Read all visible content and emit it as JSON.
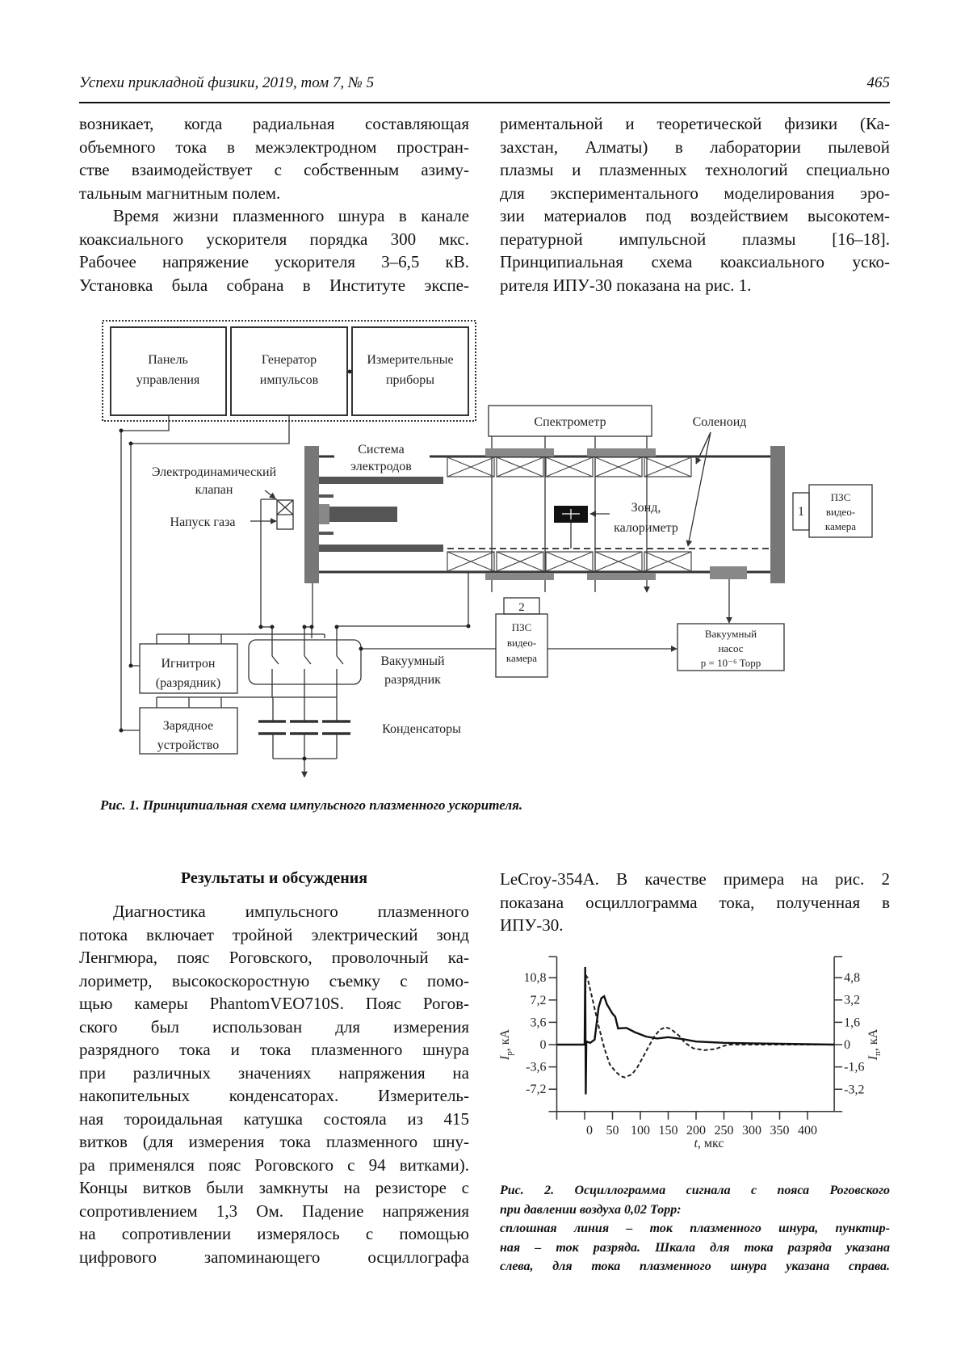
{
  "header": {
    "journal": "Успехи прикладной физики, 2019, том 7, № 5",
    "page_number": "465"
  },
  "intro": {
    "left": [
      [
        "возникает, когда радиальная составляющая",
        "объемного тока в межэлектродном простран-",
        "стве взаимодействует с собственным азиму-",
        "тальным магнитным полем."
      ],
      [
        "Время жизни плазменного шнура в канале",
        "коаксиального ускорителя порядка 300 мкс.",
        "Рабочее напряжение ускорителя 3–6,5 кВ.",
        "Установка была собрана в Институте экспе-"
      ]
    ],
    "right": [
      [
        "риментальной и теоретической физики (Ка-",
        "захстан, Алматы) в лаборатории пылевой",
        "плазмы и плазменных технологий специально",
        "для экспериментального моделирования эро-",
        "зии материалов под воздействием высокотем-",
        "пературной импульсной плазмы [16–18].",
        "Принципиальная схема коаксиального уско-",
        "рителя ИПУ-30 показана на рис. 1."
      ]
    ]
  },
  "figure1": {
    "labels": {
      "panel": [
        "Панель",
        "управления"
      ],
      "generator": [
        "Генератор",
        "импульсов"
      ],
      "instruments": [
        "Измерительные",
        "приборы"
      ],
      "spectrometer": "Спектрометр",
      "solenoid": "Соленоид",
      "electrodes": [
        "Система",
        "электродов"
      ],
      "valve": [
        "Электродинамический",
        "клапан"
      ],
      "gas_inlet": "Напуск газа",
      "probe": [
        "Зонд,",
        "калориметр"
      ],
      "camera1": {
        "number": "1",
        "lines": [
          "ПЗС",
          "видео-",
          "камера"
        ]
      },
      "camera2": {
        "number": "2",
        "lines": [
          "ПЗС",
          "видео-",
          "камера"
        ]
      },
      "pump": [
        "Вакуумный",
        "насос",
        "p = 10⁻⁶ Торр"
      ],
      "ignitron": [
        "Игнитрон",
        "(разрядник)"
      ],
      "vacuum_switch": [
        "Вакуумный",
        "разрядник"
      ],
      "charger": [
        "Зарядное",
        "устройство"
      ],
      "capacitors": "Конденсаторы"
    },
    "caption": "Рис. 1. Принципиальная схема импульсного плазменного ускорителя."
  },
  "results": {
    "heading": "Результаты и обсуждения",
    "left": [
      [
        "Диагностика импульсного плазменного",
        "потока включает тройной электрический зонд",
        "Ленгмюра, пояс Роговского, проволочный ка-",
        "лориметр, высокоскоростную съемку с помо-",
        "щью камеры PhantomVEO710S. Пояс Рогов-",
        "ского был использован для измерения",
        "разрядного тока и тока плазменного шнура",
        "при различных значениях напряжения на",
        "накопительных конденсаторах. Измеритель-",
        "ная тороидальная катушка состояла из 415",
        "витков (для измерения тока плазменного шну-",
        "ра применялся пояс Роговского с 94 витками).",
        "Концы витков были замкнуты на резисторе с",
        "сопротивлением 1,3 Ом. Падение напряжения",
        "на сопротивлении измерялось с помощью",
        "цифрового запоминающего осциллографа"
      ]
    ],
    "right": [
      [
        "LeCroy-354A. В качестве примера на рис. 2",
        "показана осциллограмма тока, полученная в",
        "ИПУ-30."
      ]
    ]
  },
  "figure2": {
    "caption": [
      "Рис. 2. Осциллограмма сигнала с пояса Роговского",
      "при давлении воздуха 0,02 Торр:",
      "сплошная линия – ток плазменного шнура, пунктир-",
      "ная – ток разряда. Шкала для тока разряда указана",
      "слева, для тока плазменного шнура указана справа."
    ]
  },
  "chart_data": {
    "type": "line",
    "title": "",
    "xlabel": {
      "symbol": "t",
      "unit": ", мкс"
    },
    "ylabel_left": {
      "symbol": "I",
      "subscript": "р",
      "unit": ", кА"
    },
    "ylabel_right": {
      "symbol": "I",
      "subscript": "п",
      "unit": ", кА"
    },
    "xlim": [
      -50,
      448
    ],
    "ylim_left": [
      -10.8,
      14.2
    ],
    "ylim_right": [
      -4.8,
      6.3
    ],
    "x_ticks": [
      "0",
      "50",
      "100",
      "150",
      "200",
      "250",
      "300",
      "350",
      "400"
    ],
    "x_tick_values": [
      0,
      50,
      100,
      150,
      200,
      250,
      300,
      350,
      400
    ],
    "y_left_ticks": [
      "10,8",
      "7,2",
      "3,6",
      "0",
      "-3,6",
      "-7,2"
    ],
    "y_left_tick_values": [
      10.8,
      7.2,
      3.6,
      0,
      -3.6,
      -7.2
    ],
    "y_right_ticks": [
      "4,8",
      "3,2",
      "1,6",
      "0",
      "-1,6",
      "-3,2"
    ],
    "y_right_tick_values": [
      4.8,
      3.2,
      1.6,
      0,
      -1.6,
      -3.2
    ],
    "grid": false,
    "series": [
      {
        "axis": "left",
        "style": "dashed",
        "color": "#222222",
        "x": [
          -50,
          0,
          2,
          5,
          15,
          25,
          35,
          45,
          55,
          65,
          72,
          85,
          95,
          105,
          115,
          125,
          135,
          145,
          155,
          170,
          180,
          195,
          215,
          235,
          250,
          260,
          448
        ],
        "y": [
          0,
          0,
          11.2,
          10.8,
          7,
          3,
          -0.5,
          -3.2,
          -4.3,
          -5.1,
          -5.3,
          -4.8,
          -3.6,
          -2,
          -0.3,
          1.3,
          2.4,
          2.8,
          2.5,
          1.4,
          0.3,
          -0.6,
          -0.9,
          -0.7,
          -0.2,
          0,
          0
        ]
      },
      {
        "axis": "right",
        "style": "solid",
        "color": "#111111",
        "x": [
          -50,
          0,
          1,
          2,
          3,
          10,
          18,
          25,
          30,
          35,
          40,
          50,
          55,
          60,
          75,
          90,
          110,
          130,
          150,
          175,
          200,
          250,
          300,
          448
        ],
        "y": [
          0,
          0,
          5.56,
          -3.56,
          0.22,
          0.13,
          0.36,
          2.67,
          3.33,
          3.47,
          2.89,
          2.22,
          2.0,
          1.16,
          1.2,
          0.89,
          0.58,
          0.44,
          0.53,
          0.4,
          0.22,
          0.13,
          0.09,
          0
        ]
      }
    ]
  }
}
